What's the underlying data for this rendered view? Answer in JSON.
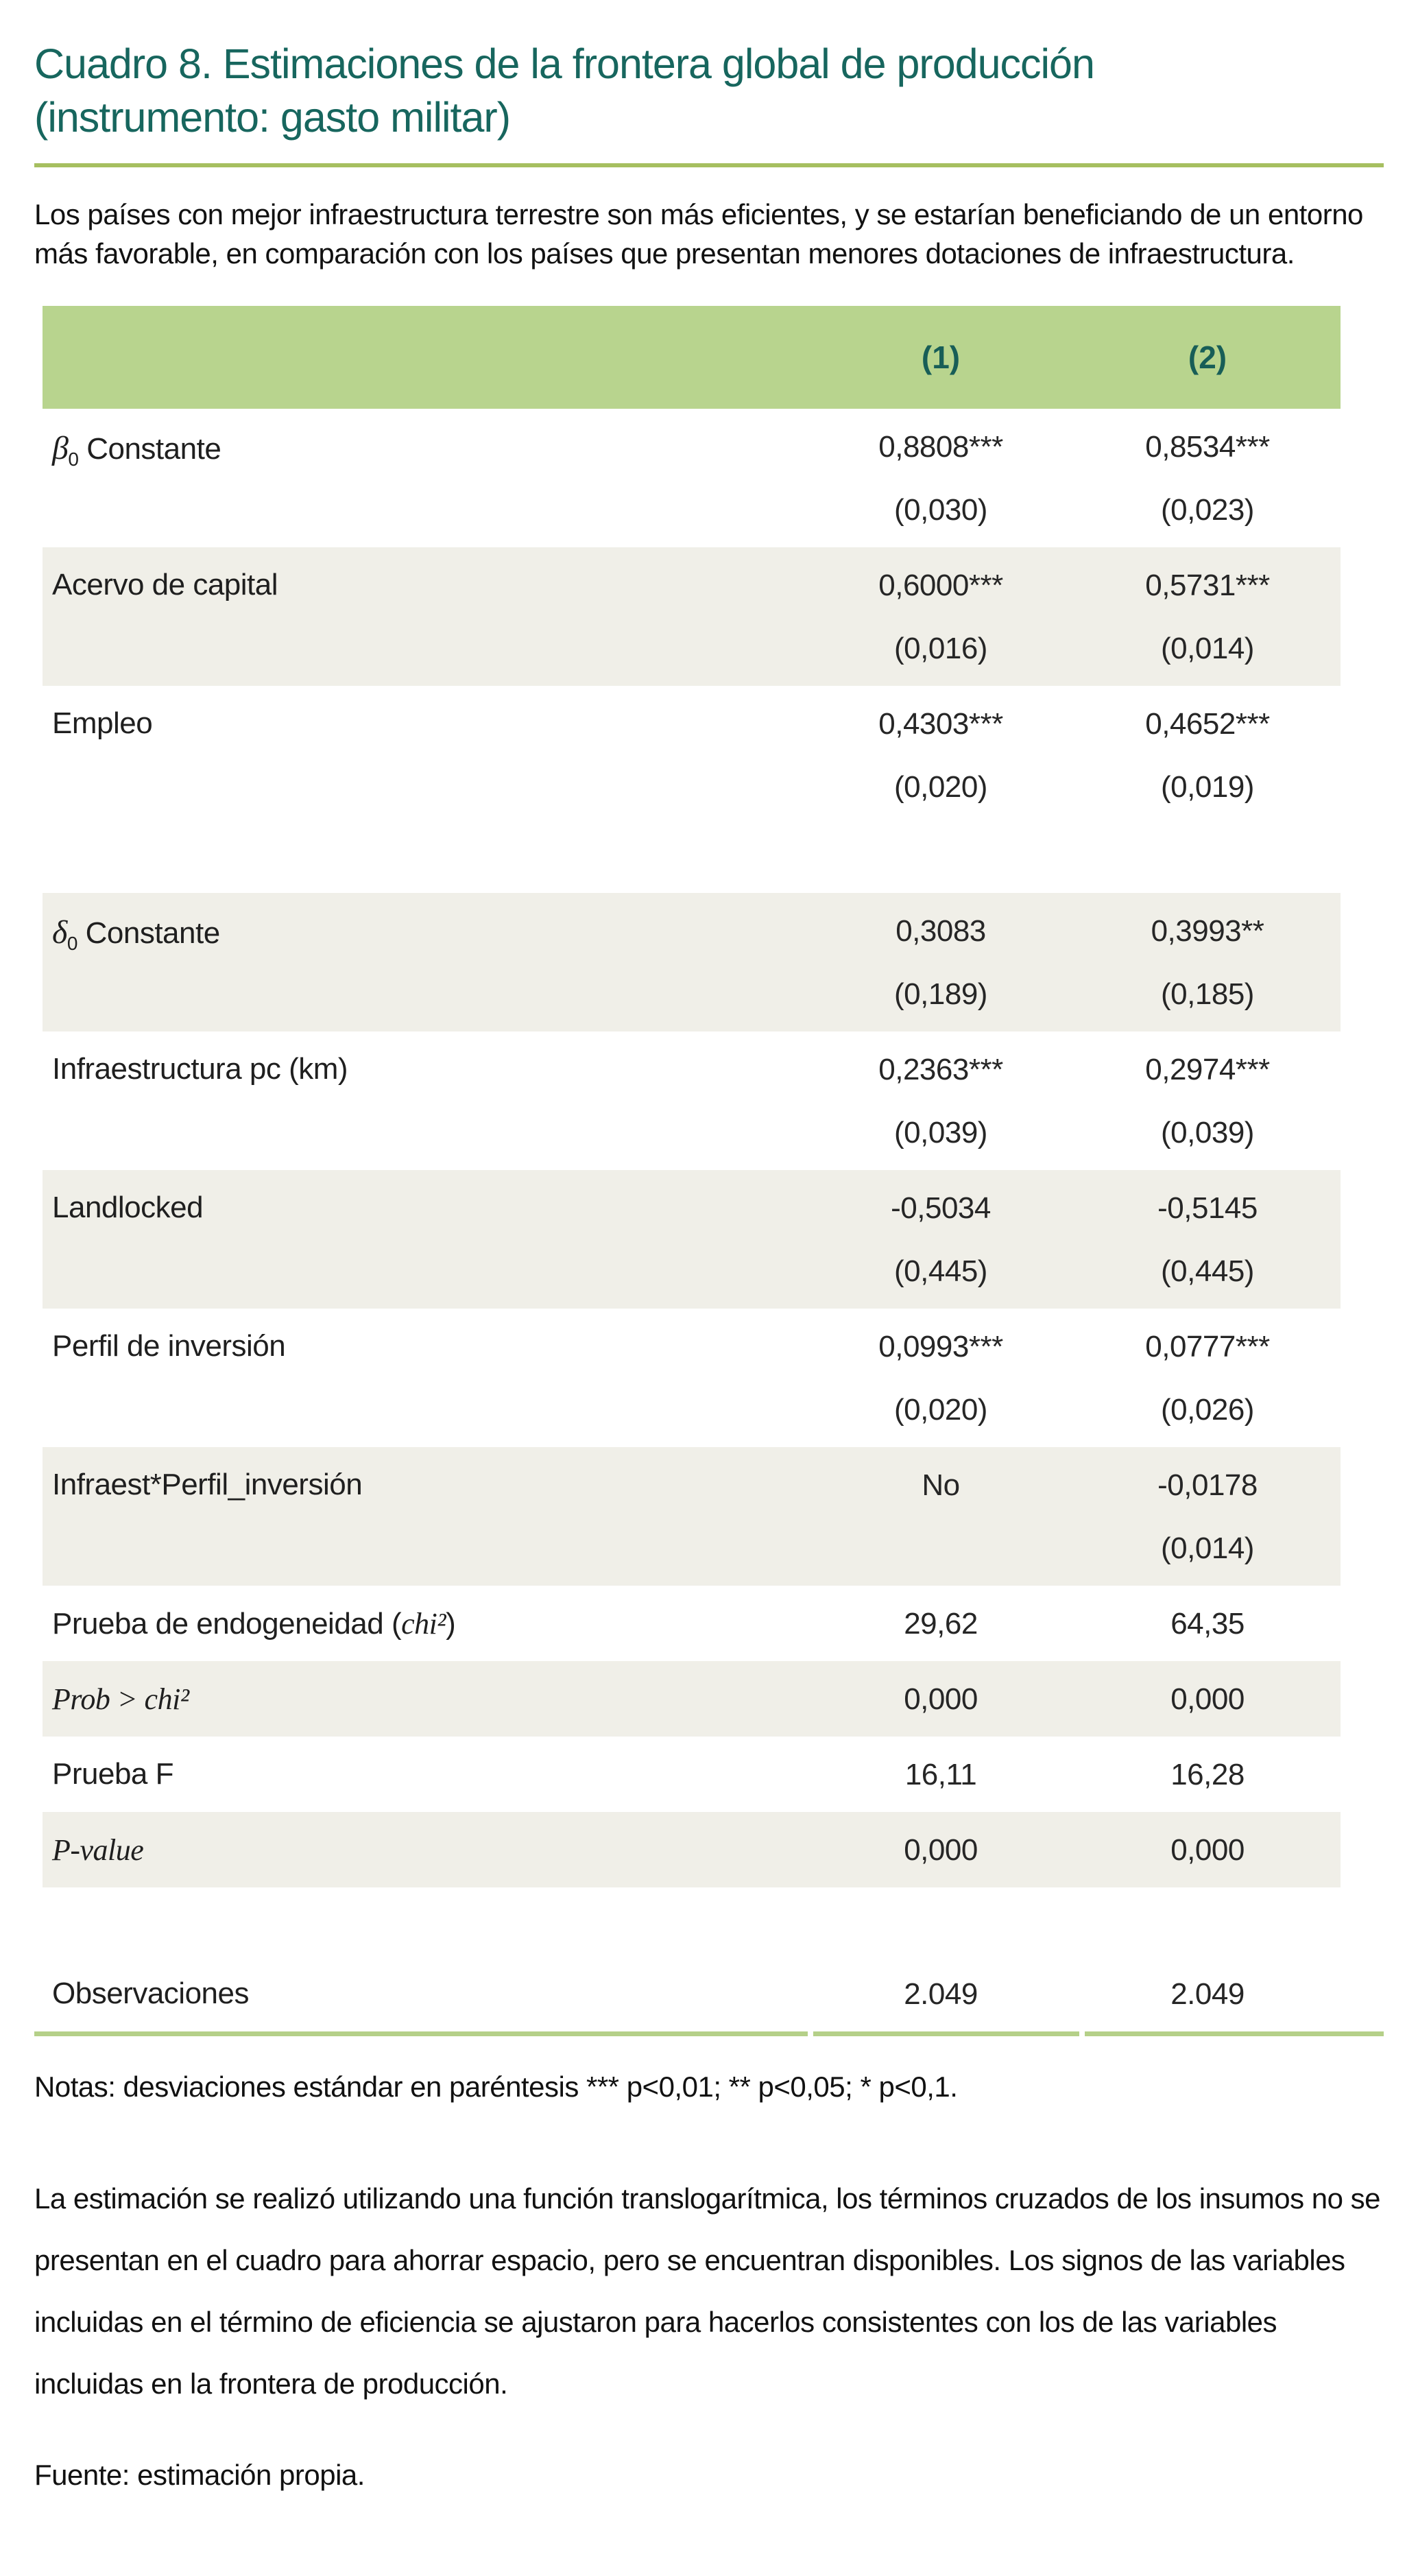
{
  "title": {
    "line1": "Cuadro 8. Estimaciones de la frontera global de producción",
    "line2": "(instrumento: gasto militar)"
  },
  "intro": "Los países con mejor infraestructura terrestre son más eficientes, y se estarían beneficiando de un entorno más favorable, en comparación con los países que presentan menores dotaciones de infraestructura.",
  "table": {
    "col_headers": [
      "(1)",
      "(2)"
    ],
    "rows": [
      {
        "sym": "β",
        "sub": "0",
        "txt": " Constante",
        "c1": "0,8808***",
        "c2": "0,8534***",
        "se1": "(0,030)",
        "se2": "(0,023)"
      },
      {
        "txt": "Acervo de capital",
        "c1": "0,6000***",
        "c2": "0,5731***",
        "se1": "(0,016)",
        "se2": "(0,014)"
      },
      {
        "txt": "Empleo",
        "c1": "0,4303***",
        "c2": "0,4652***",
        "se1": "(0,020)",
        "se2": "(0,019)"
      },
      {
        "sym": "δ",
        "sub": "0",
        "txt": " Constante",
        "c1": "0,3083",
        "c2": "0,3993**",
        "se1": "(0,189)",
        "se2": "(0,185)"
      },
      {
        "txt": "Infraestructura pc (km)",
        "c1": "0,2363***",
        "c2": "0,2974***",
        "se1": "(0,039)",
        "se2": "(0,039)"
      },
      {
        "txt": "Landlocked",
        "c1": "-0,5034",
        "c2": "-0,5145",
        "se1": "(0,445)",
        "se2": "(0,445)"
      },
      {
        "txt": "Perfil de inversión",
        "c1": "0,0993***",
        "c2": "0,0777***",
        "se1": "(0,020)",
        "se2": "(0,026)"
      },
      {
        "txt": "Infraest*Perfil_inversión",
        "c1": "No",
        "c2": "-0,0178",
        "se2": "(0,014)"
      },
      {
        "txt": "Prueba de endogeneidad (",
        "it": "chi²",
        "txt2": ")",
        "c1": "29,62",
        "c2": "64,35"
      },
      {
        "it": "Prob > chi²",
        "c1": "0,000",
        "c2": "0,000"
      },
      {
        "txt": "Prueba F",
        "c1": "16,11",
        "c2": "16,28"
      },
      {
        "it": "P-value",
        "c1": "0,000",
        "c2": "0,000"
      },
      {
        "txt": "Observaciones",
        "c1": "2.049",
        "c2": "2.049"
      }
    ]
  },
  "notes": "Notas: desviaciones estándar en paréntesis *** p<0,01; ** p<0,05; * p<0,1.",
  "paragraph": "La estimación se realizó utilizando una función translogarítmica, los términos cruzados de los insumos no se presentan en el cuadro para ahorrar espacio, pero se encuentran disponibles. Los signos de las variables incluidas en el término de eficiencia se ajustaron para hacerlos consistentes con los de las variables incluidas en la frontera de producción.",
  "source": "Fuente: estimación propia.",
  "colors": {
    "title_teal": "#17665e",
    "rule_olive": "#a6bf60",
    "header_green": "#b8d48e",
    "header_text_teal": "#185e57",
    "shaded_row": "#f0efe8",
    "bottom_border_green": "#b5d089"
  }
}
